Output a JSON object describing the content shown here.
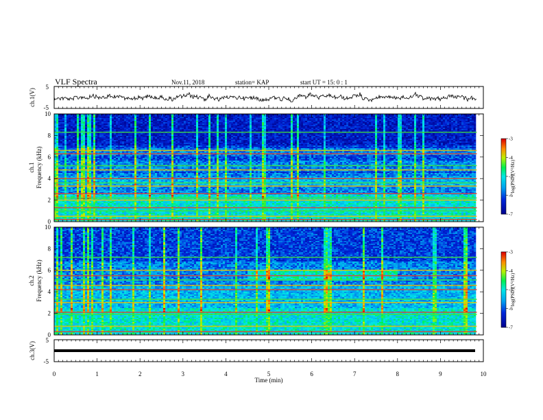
{
  "header": {
    "title": "VLF Spectra",
    "date": "Nov.11, 2018",
    "station": "station= KAP",
    "start_ut": "start UT = 15: 0 : 1"
  },
  "chart_data": [
    {
      "type": "line",
      "panel": "ch1-waveform",
      "ylabel": "ch.1(V)",
      "ylim": [
        -5,
        5
      ],
      "yticks": [
        "5",
        "-5"
      ],
      "xlim": [
        0,
        10
      ]
    },
    {
      "type": "heatmap",
      "panel": "ch1-spectrogram",
      "ylabel_top": "ch.1",
      "ylabel": "Frequency (kHz)",
      "ylim": [
        0,
        10
      ],
      "yticks": [
        "0",
        "2",
        "4",
        "6",
        "8",
        "10"
      ],
      "xlim": [
        0,
        9.85
      ],
      "colorbar": {
        "label": "log(PSD)(V²/Hz)",
        "ticks": [
          "-3",
          "-4",
          "-5",
          "-6",
          "-7"
        ],
        "range": [
          -7,
          -3
        ]
      },
      "horizontal_lines_khz": [
        0.2,
        0.5,
        1.0,
        1.3,
        2.0,
        2.2,
        2.6,
        3.3,
        3.6,
        4.0,
        4.8,
        5.2,
        6.3,
        6.6,
        8.3
      ],
      "dark_bands_khz": [
        [
          7.0,
          10.0
        ],
        [
          5.6,
          6.2
        ],
        [
          2.6,
          3.3
        ],
        [
          4.1,
          4.6
        ]
      ]
    },
    {
      "type": "heatmap",
      "panel": "ch2-spectrogram",
      "ylabel_top": "ch.2",
      "ylabel": "Frequency (kHz)",
      "ylim": [
        0,
        10
      ],
      "yticks": [
        "0",
        "2",
        "4",
        "6",
        "8",
        "10"
      ],
      "xlim": [
        0,
        9.85
      ],
      "colorbar": {
        "label": "log(PSD)(V²/Hz)",
        "ticks": [
          "-3",
          "-4",
          "-5",
          "-6",
          "-7"
        ],
        "range": [
          -7,
          -3
        ]
      },
      "horizontal_lines_khz": [
        0.3,
        0.8,
        1.9,
        2.1,
        3.0,
        3.3,
        4.2,
        4.6,
        5.1,
        5.5,
        6.0,
        7.2
      ],
      "enhanced_region": {
        "x_min": [
          4.5,
          8.0
        ],
        "freq_khz": [
          5.0,
          6.0
        ]
      }
    },
    {
      "type": "line",
      "panel": "ch3-waveform",
      "ylabel": "ch.3(V)",
      "ylim": [
        -5,
        5
      ],
      "yticks": [
        "5",
        "-5"
      ],
      "xlabel": "Time (min)",
      "xticks": [
        "0",
        "1",
        "2",
        "3",
        "4",
        "5",
        "6",
        "7",
        "8",
        "9",
        "10"
      ],
      "xlim": [
        0,
        10
      ],
      "constant_value": 0
    }
  ]
}
